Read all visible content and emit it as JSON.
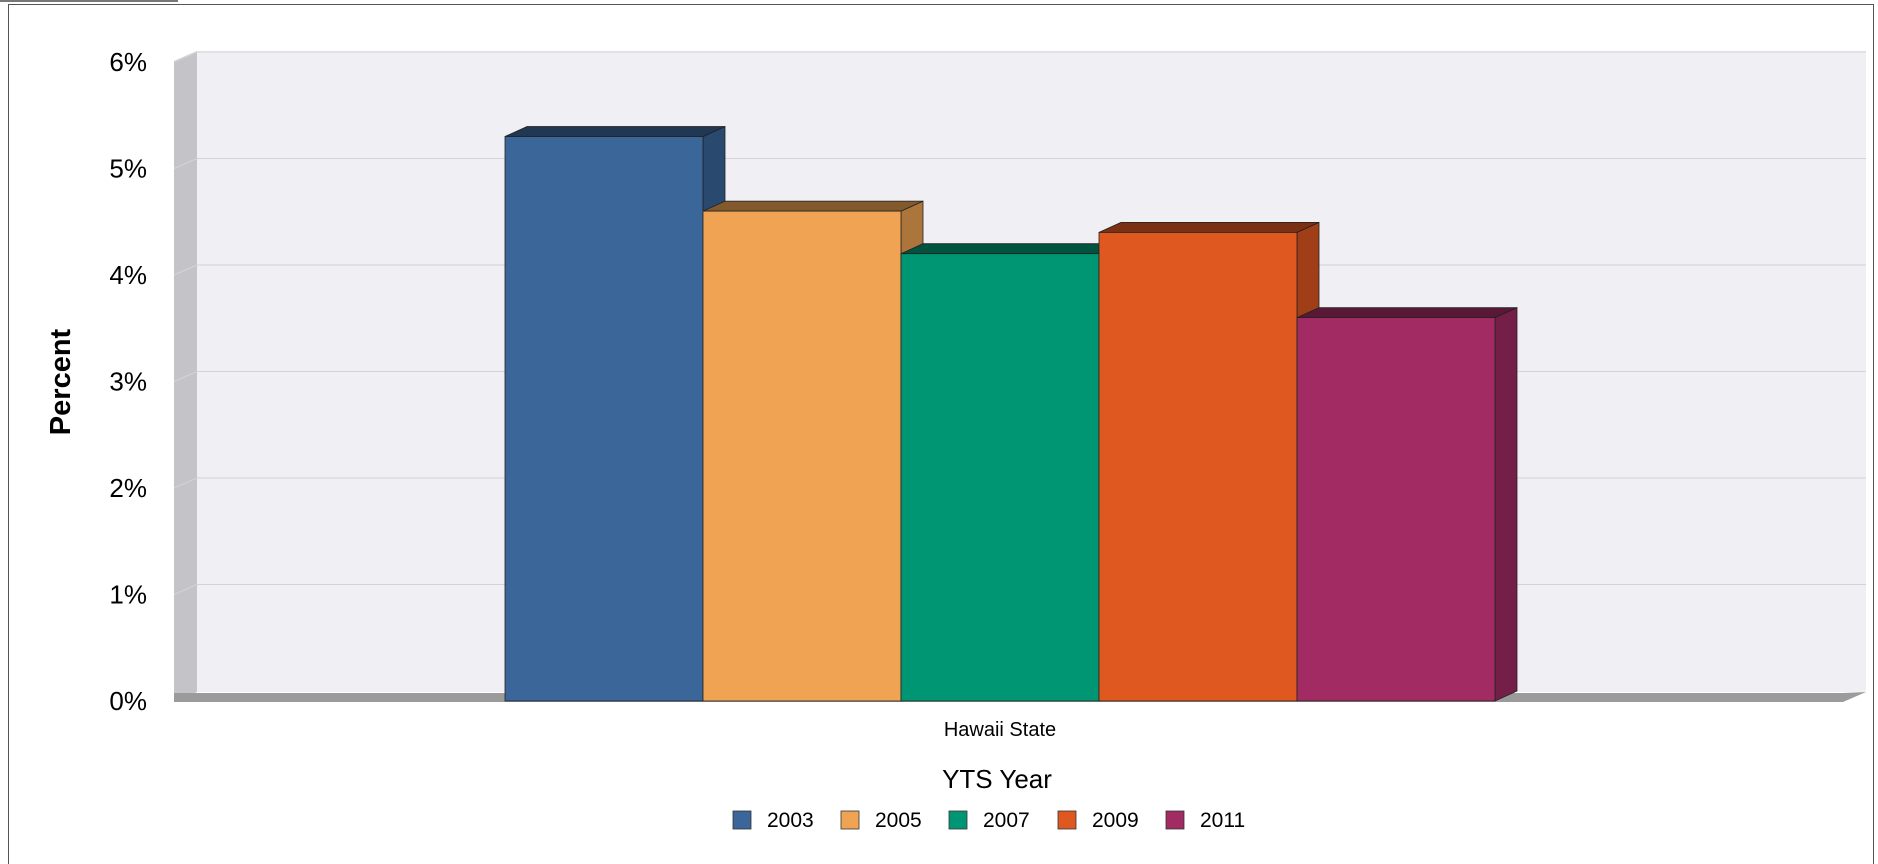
{
  "chart_data": {
    "type": "bar",
    "categories": [
      "Hawaii State"
    ],
    "series": [
      {
        "name": "2003",
        "values": [
          5.3
        ],
        "color": "#3a6699"
      },
      {
        "name": "2005",
        "values": [
          4.6
        ],
        "color": "#efa353"
      },
      {
        "name": "2007",
        "values": [
          4.2
        ],
        "color": "#009673"
      },
      {
        "name": "2009",
        "values": [
          4.4
        ],
        "color": "#de5820"
      },
      {
        "name": "2011",
        "values": [
          3.6
        ],
        "color": "#a12b62"
      }
    ],
    "ylabel": "Percent",
    "legend_title": "YTS Year",
    "legend_position": "bottom",
    "ylim": [
      0,
      6
    ],
    "yticks": [
      "0%",
      "1%",
      "2%",
      "3%",
      "4%",
      "5%",
      "6%"
    ],
    "grid": true,
    "style": "3d"
  }
}
